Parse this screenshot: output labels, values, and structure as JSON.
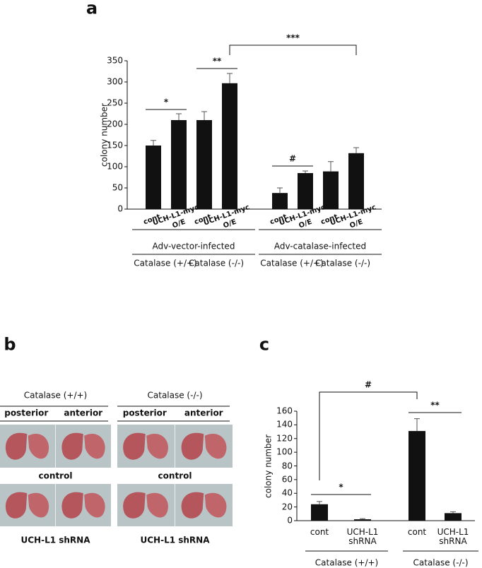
{
  "panel_labels": [
    "a",
    "b",
    "c"
  ],
  "chart_data": [
    {
      "type": "bar",
      "y_label": "colony number",
      "categories": [
        "cont",
        "UCH-L1-myc\nO/E",
        "cont",
        "UCH-L1-myc\nO/E",
        "cont",
        "UCH-L1-myc\nO/E",
        "cont",
        "UCH-L1-myc\nO/E"
      ],
      "values": [
        150,
        210,
        210,
        297,
        38,
        85,
        89,
        132
      ],
      "errors": [
        12,
        15,
        20,
        23,
        12,
        5,
        23,
        13
      ],
      "color": "#111111",
      "ylim": [
        0,
        350
      ],
      "yticks": [
        0,
        50,
        100,
        150,
        200,
        250,
        300,
        350
      ],
      "groups": [
        {
          "label": "Adv-vector-infected",
          "subgroups": [
            "Catalase (+/+)",
            "Catalase (-/-)"
          ]
        },
        {
          "label": "Adv-catalase-infected",
          "subgroups": [
            "Catalase (+/+)",
            "Catalase (-/-)"
          ]
        }
      ],
      "annotations": [
        "*",
        "**",
        "***",
        "#"
      ]
    },
    {
      "type": "bar",
      "y_label": "colony number",
      "categories": [
        "cont",
        "UCH-L1\nshRNA",
        "cont",
        "UCH-L1\nshRNA"
      ],
      "values": [
        24,
        2,
        131,
        11
      ],
      "errors": [
        4,
        1,
        18,
        2
      ],
      "color": "#111111",
      "ylim": [
        0,
        160
      ],
      "yticks": [
        0,
        20,
        40,
        60,
        80,
        100,
        120,
        140,
        160
      ],
      "groups": [
        "Catalase (+/+)",
        "Catalase (-/-)"
      ],
      "annotations": [
        "*",
        "**",
        "#"
      ]
    }
  ],
  "panel_b": {
    "columns": [
      {
        "title": "Catalase (+/+)",
        "views": [
          "posterior",
          "anterior"
        ],
        "rows": [
          "control",
          "UCH-L1 shRNA"
        ]
      },
      {
        "title": "Catalase (-/-)",
        "views": [
          "posterior",
          "anterior"
        ],
        "rows": [
          "control",
          "UCH-L1 shRNA"
        ]
      }
    ]
  }
}
